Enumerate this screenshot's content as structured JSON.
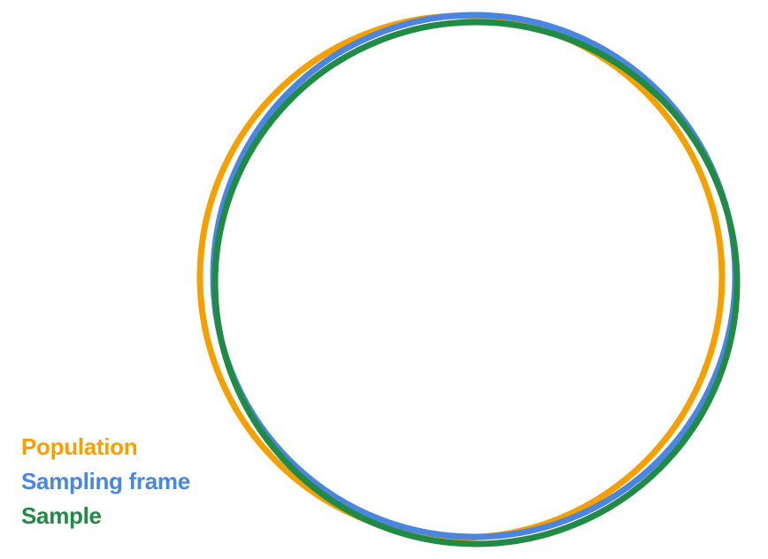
{
  "legend": {
    "population": {
      "label": "Population",
      "color": "#F5A000"
    },
    "sampling_frame": {
      "label": "Sampling frame",
      "color": "#4A86E0"
    },
    "sample": {
      "label": "Sample",
      "color": "#218A44"
    }
  }
}
